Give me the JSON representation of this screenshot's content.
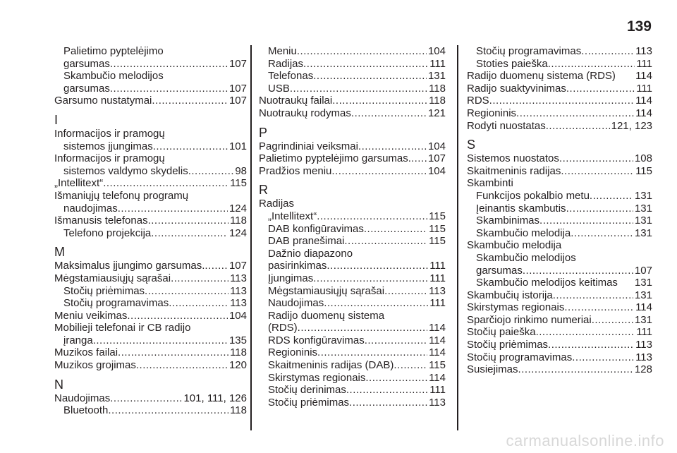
{
  "page_number": "139",
  "watermark": "carmanualsonline.info",
  "columns": [
    [
      {
        "k": "r",
        "i": 1,
        "t": "Palietimo pyptelėjimo"
      },
      {
        "k": "r",
        "i": 1,
        "t": "garsumas",
        "p": "107"
      },
      {
        "k": "r",
        "i": 1,
        "t": "Skambučio melodijos"
      },
      {
        "k": "r",
        "i": 1,
        "t": "garsumas",
        "p": "107"
      },
      {
        "k": "r",
        "i": 0,
        "t": "Garsumo nustatymai",
        "p": "107"
      },
      {
        "k": "h",
        "t": "I"
      },
      {
        "k": "r",
        "i": 0,
        "t": "Informacijos ir pramogų"
      },
      {
        "k": "r",
        "i": 1,
        "t": "sistemos įjungimas",
        "p": "101"
      },
      {
        "k": "r",
        "i": 0,
        "t": "Informacijos ir pramogų"
      },
      {
        "k": "r",
        "i": 1,
        "t": "sistemos valdymo skydelis",
        "p": "98"
      },
      {
        "k": "r",
        "i": 0,
        "t": "„Intellitext“",
        "p": "115"
      },
      {
        "k": "r",
        "i": 0,
        "t": "Išmaniųjų telefonų programų"
      },
      {
        "k": "r",
        "i": 1,
        "t": "naudojimas",
        "p": "124"
      },
      {
        "k": "r",
        "i": 0,
        "t": "Išmanusis telefonas",
        "p": "118"
      },
      {
        "k": "r",
        "i": 1,
        "t": "Telefono projekcija",
        "p": "124"
      },
      {
        "k": "h",
        "t": "M"
      },
      {
        "k": "r",
        "i": 0,
        "t": "Maksimalus įjungimo garsumas.",
        "p": "107"
      },
      {
        "k": "r",
        "i": 0,
        "t": "Mėgstamiausiųjų sąrašai",
        "p": "113"
      },
      {
        "k": "r",
        "i": 1,
        "t": "Stočių priėmimas",
        "p": "113"
      },
      {
        "k": "r",
        "i": 1,
        "t": "Stočių programavimas",
        "p": "113"
      },
      {
        "k": "r",
        "i": 0,
        "t": "Meniu veikimas",
        "p": "104"
      },
      {
        "k": "r",
        "i": 0,
        "t": "Mobilieji telefonai ir CB radijo"
      },
      {
        "k": "r",
        "i": 1,
        "t": "įranga ",
        "p": "135"
      },
      {
        "k": "r",
        "i": 0,
        "t": "Muzikos failai",
        "p": "118"
      },
      {
        "k": "r",
        "i": 0,
        "t": "Muzikos grojimas",
        "p": "120"
      },
      {
        "k": "h",
        "t": "N"
      },
      {
        "k": "r",
        "i": 0,
        "t": "Naudojimas",
        "p": "101, 111, 126"
      },
      {
        "k": "r",
        "i": 1,
        "t": "Bluetooth",
        "p": "118"
      }
    ],
    [
      {
        "k": "r",
        "i": 1,
        "t": "Meniu",
        "p": "104"
      },
      {
        "k": "r",
        "i": 1,
        "t": "Radijas",
        "p": "111"
      },
      {
        "k": "r",
        "i": 1,
        "t": "Telefonas",
        "p": "131"
      },
      {
        "k": "r",
        "i": 1,
        "t": "USB",
        "p": "118"
      },
      {
        "k": "r",
        "i": 0,
        "t": "Nuotraukų failai",
        "p": "118"
      },
      {
        "k": "r",
        "i": 0,
        "t": "Nuotraukų rodymas",
        "p": "121"
      },
      {
        "k": "h",
        "t": "P"
      },
      {
        "k": "r",
        "i": 0,
        "t": "Pagrindiniai veiksmai",
        "p": "104"
      },
      {
        "k": "r",
        "i": 0,
        "t": "Palietimo pyptelėjimo garsumas.",
        "p": "107"
      },
      {
        "k": "r",
        "i": 0,
        "t": "Pradžios meniu",
        "p": "104"
      },
      {
        "k": "h",
        "t": "R"
      },
      {
        "k": "r",
        "i": 0,
        "t": "Radijas"
      },
      {
        "k": "r",
        "i": 1,
        "t": "„Intellitext“",
        "p": "115"
      },
      {
        "k": "r",
        "i": 1,
        "t": "DAB konfigūravimas",
        "p": "115"
      },
      {
        "k": "r",
        "i": 1,
        "t": "DAB pranešimai",
        "p": "115"
      },
      {
        "k": "r",
        "i": 1,
        "t": "Dažnio diapazono"
      },
      {
        "k": "r",
        "i": 1,
        "t": "pasirinkimas",
        "p": "111"
      },
      {
        "k": "r",
        "i": 1,
        "t": "Įjungimas",
        "p": "111"
      },
      {
        "k": "r",
        "i": 1,
        "t": "Mėgstamiausiųjų sąrašai",
        "p": "113"
      },
      {
        "k": "r",
        "i": 1,
        "t": "Naudojimas",
        "p": "111"
      },
      {
        "k": "r",
        "i": 1,
        "t": "Radijo duomenų sistema"
      },
      {
        "k": "r",
        "i": 1,
        "t": "(RDS)",
        "p": "114"
      },
      {
        "k": "r",
        "i": 1,
        "t": "RDS konfigūravimas",
        "p": "114"
      },
      {
        "k": "r",
        "i": 1,
        "t": "Regioninis",
        "p": "114"
      },
      {
        "k": "r",
        "i": 1,
        "t": "Skaitmeninis radijas (DAB)",
        "p": "115"
      },
      {
        "k": "r",
        "i": 1,
        "t": "Skirstymas regionais",
        "p": "114"
      },
      {
        "k": "r",
        "i": 1,
        "t": "Stočių derinimas",
        "p": "111"
      },
      {
        "k": "r",
        "i": 1,
        "t": "Stočių priėmimas",
        "p": "113"
      }
    ],
    [
      {
        "k": "r",
        "i": 1,
        "t": "Stočių programavimas",
        "p": "113"
      },
      {
        "k": "r",
        "i": 1,
        "t": "Stoties paieška",
        "p": "111"
      },
      {
        "k": "r",
        "i": 0,
        "t": "Radijo duomenų sistema (RDS)",
        "p": "114",
        "nolead": true
      },
      {
        "k": "r",
        "i": 0,
        "t": "Radijo suaktyvinimas",
        "p": "111"
      },
      {
        "k": "r",
        "i": 0,
        "t": "RDS",
        "p": "114"
      },
      {
        "k": "r",
        "i": 0,
        "t": "Regioninis",
        "p": "114"
      },
      {
        "k": "r",
        "i": 0,
        "t": "Rodyti nuostatas",
        "p": "121, 123"
      },
      {
        "k": "h",
        "t": "S"
      },
      {
        "k": "r",
        "i": 0,
        "t": "Sistemos nuostatos",
        "p": "108"
      },
      {
        "k": "r",
        "i": 0,
        "t": "Skaitmeninis radijas",
        "p": "115"
      },
      {
        "k": "r",
        "i": 0,
        "t": "Skambinti"
      },
      {
        "k": "r",
        "i": 1,
        "t": "Funkcijos pokalbio metu",
        "p": "131"
      },
      {
        "k": "r",
        "i": 1,
        "t": "Įeinantis skambutis",
        "p": "131"
      },
      {
        "k": "r",
        "i": 1,
        "t": "Skambinimas",
        "p": "131"
      },
      {
        "k": "r",
        "i": 1,
        "t": "Skambučio melodija",
        "p": "131"
      },
      {
        "k": "r",
        "i": 0,
        "t": "Skambučio melodija"
      },
      {
        "k": "r",
        "i": 1,
        "t": "Skambučio melodijos"
      },
      {
        "k": "r",
        "i": 1,
        "t": "garsumas",
        "p": "107"
      },
      {
        "k": "r",
        "i": 1,
        "t": "Skambučio melodijos keitimas",
        "p": "131",
        "nolead": true
      },
      {
        "k": "r",
        "i": 0,
        "t": "Skambučių istorija",
        "p": "131"
      },
      {
        "k": "r",
        "i": 0,
        "t": "Skirstymas regionais",
        "p": "114"
      },
      {
        "k": "r",
        "i": 0,
        "t": "Sparčiojo rinkimo numeriai",
        "p": "131"
      },
      {
        "k": "r",
        "i": 0,
        "t": "Stočių paieška",
        "p": "111"
      },
      {
        "k": "r",
        "i": 0,
        "t": "Stočių priėmimas",
        "p": "113"
      },
      {
        "k": "r",
        "i": 0,
        "t": "Stočių programavimas",
        "p": "113"
      },
      {
        "k": "r",
        "i": 0,
        "t": "Susiejimas",
        "p": "128"
      }
    ]
  ]
}
